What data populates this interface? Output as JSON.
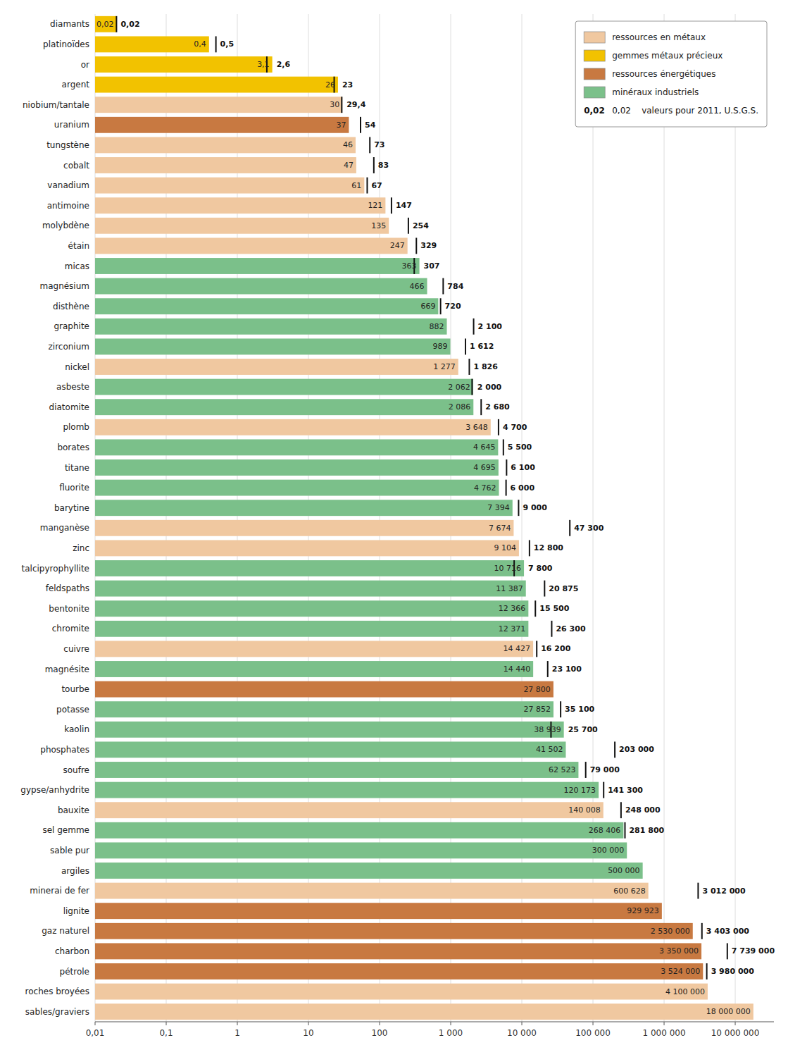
{
  "chart_data": {
    "type": "bar",
    "orientation": "horizontal",
    "log": "x",
    "grid": true,
    "legend": "upper right",
    "data_labels": true,
    "categories": [
      "diamants",
      "platinoïdes",
      "or",
      "argent",
      "niobium/tantale",
      "uranium",
      "tungstène",
      "cobalt",
      "vanadium",
      "antimoine",
      "molybdène",
      "étain",
      "micas",
      "magnésium",
      "disthène",
      "graphite",
      "zirconium",
      "nickel",
      "asbeste",
      "diatomite",
      "plomb",
      "borates",
      "titane",
      "fluorite",
      "barytine",
      "manganèse",
      "zinc",
      "talcipyrophyllite",
      "feldspaths",
      "bentonite",
      "chromite",
      "cuivre",
      "magnésite",
      "tourbe",
      "potasse",
      "kaolin",
      "phosphates",
      "soufre",
      "gypse/anhydrite",
      "bauxite",
      "sel gemme",
      "sable pur",
      "argiles",
      "minerai de fer",
      "lignite",
      "gaz naturel",
      "charbon",
      "pétrole",
      "roches broyées",
      "sables/graviers"
    ],
    "values": [
      0.02,
      0.4,
      3.1,
      26,
      30,
      37,
      46,
      47,
      61,
      121,
      135,
      247,
      363,
      466,
      669,
      882,
      989,
      1277,
      2062,
      2086,
      3648,
      4645,
      4695,
      4762,
      7394,
      7674,
      9104,
      10716,
      11387,
      12366,
      12371,
      14427,
      14440,
      27800,
      27852,
      38939,
      41502,
      62523,
      120173,
      140008,
      268406,
      300000,
      500000,
      600628,
      929923,
      2530000,
      3350000,
      3524000,
      4100000,
      18000000
    ],
    "value_labels": [
      "0,02",
      "0,4",
      "3,1",
      "26",
      "30",
      "37",
      "46",
      "47",
      "61",
      "121",
      "135",
      "247",
      "363",
      "466",
      "669",
      "882",
      "989",
      "1 277",
      "2 062",
      "2 086",
      "3 648",
      "4 645",
      "4 695",
      "4 762",
      "7 394",
      "7 674",
      "9 104",
      "10 716",
      "11 387",
      "12 366",
      "12 371",
      "14 427",
      "14 440",
      "27 800",
      "27 852",
      "38 939",
      "41 502",
      "62 523",
      "120 173",
      "140 008",
      "268 406",
      "300 000",
      "500 000",
      "600 628",
      "929 923",
      "2 530 000",
      "3 350 000",
      "3 524 000",
      "4 100 000",
      "18 000 000"
    ],
    "values_2011": [
      0.02,
      0.5,
      2.6,
      23,
      29.4,
      54,
      73,
      83,
      67,
      147,
      254,
      329,
      307,
      784,
      720,
      2100,
      1612,
      1826,
      2000,
      2680,
      4700,
      5500,
      6100,
      6000,
      9000,
      47300,
      12800,
      7800,
      20875,
      15500,
      26300,
      16200,
      23100,
      null,
      35100,
      25700,
      203000,
      79000,
      141300,
      248000,
      281800,
      null,
      null,
      3012000,
      null,
      3403000,
      7739000,
      3980000,
      null,
      null
    ],
    "value_labels_2011": [
      "0,02",
      "0,5",
      "2,6",
      "23",
      "29,4",
      "54",
      "73",
      "83",
      "67",
      "147",
      "254",
      "329",
      "307",
      "784",
      "720",
      "2 100",
      "1 612",
      "1 826",
      "2 000",
      "2 680",
      "4 700",
      "5 500",
      "6 100",
      "6 000",
      "9 000",
      "47 300",
      "12 800",
      "7 800",
      "20 875",
      "15 500",
      "26 300",
      "16 200",
      "23 100",
      null,
      "35 100",
      "25 700",
      "203 000",
      "79 000",
      "141 300",
      "248 000",
      "281 800",
      null,
      null,
      "3 012 000",
      null,
      "3 403 000",
      "7 739 000",
      "3 980 000",
      null,
      null
    ],
    "colors": [
      "#f2c200",
      "#f2c200",
      "#f2c200",
      "#f2c200",
      "#f0c8a0",
      "#c87941",
      "#f0c8a0",
      "#f0c8a0",
      "#f0c8a0",
      "#f0c8a0",
      "#f0c8a0",
      "#f0c8a0",
      "#7bc08a",
      "#7bc08a",
      "#7bc08a",
      "#7bc08a",
      "#7bc08a",
      "#f0c8a0",
      "#7bc08a",
      "#7bc08a",
      "#f0c8a0",
      "#7bc08a",
      "#7bc08a",
      "#7bc08a",
      "#7bc08a",
      "#f0c8a0",
      "#f0c8a0",
      "#7bc08a",
      "#7bc08a",
      "#7bc08a",
      "#7bc08a",
      "#f0c8a0",
      "#7bc08a",
      "#c87941",
      "#7bc08a",
      "#7bc08a",
      "#7bc08a",
      "#7bc08a",
      "#7bc08a",
      "#f0c8a0",
      "#7bc08a",
      "#7bc08a",
      "#7bc08a",
      "#f0c8a0",
      "#c87941",
      "#c87941",
      "#c87941",
      "#c87941",
      "#f0c8a0",
      "#f0c8a0"
    ],
    "legend_labels": [
      "ressources en métaux",
      "gemmes métaux précieux",
      "ressources énergétiques",
      "minéraux industriels"
    ],
    "legend_colors": [
      "#f0c8a0",
      "#f2c200",
      "#c87941",
      "#7bc08a"
    ],
    "annotations": [
      "0,02    valeurs pour 2011, U.S.G.S.",
      "0,02"
    ],
    "xlim": [
      0.01,
      35000000
    ],
    "xticks": [
      {
        "value": 0.01,
        "label": "0,01"
      },
      {
        "value": 0.1,
        "label": "0,1"
      },
      1,
      10,
      100,
      {
        "value": 1000,
        "label": "1 000"
      },
      {
        "value": 10000,
        "label": "10 000"
      },
      {
        "value": 100000,
        "label": "100 000"
      },
      {
        "value": 1000000,
        "label": "1 000 000"
      },
      {
        "value": 10000000,
        "label": "10 000 000"
      }
    ]
  }
}
